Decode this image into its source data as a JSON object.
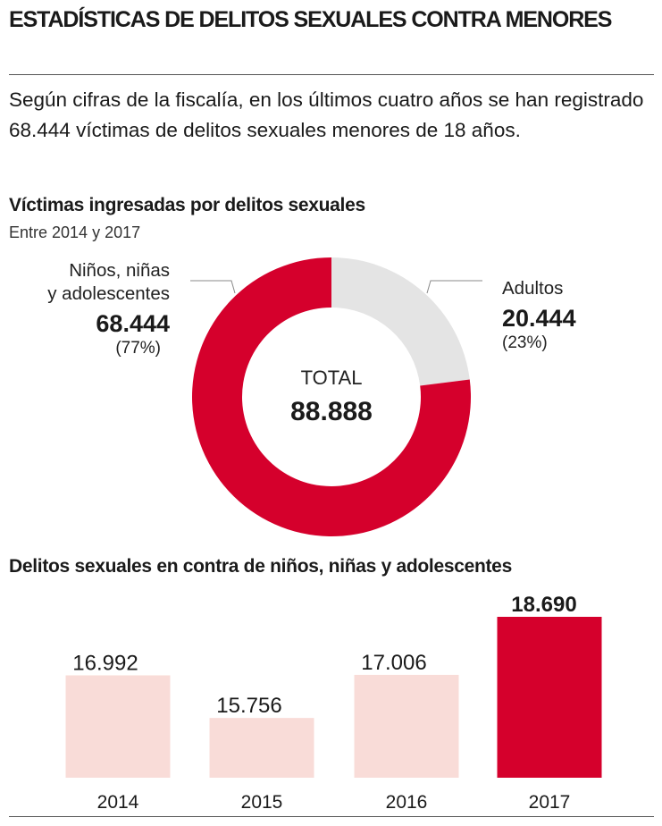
{
  "title": "ESTADÍSTICAS DE DELITOS SEXUALES CONTRA MENORES",
  "intro": "Según cifras de la fiscalía, en los últimos cuatro años se han registrado 68.444 víctimas de delitos sexuales menores de 18 años.",
  "colors": {
    "accent": "#d5002c",
    "light_gray": "#e4e4e4",
    "light_pink": "#f9dcd8"
  },
  "chart_data": [
    {
      "type": "pie",
      "title": "Víctimas ingresadas por delitos sexuales",
      "subtitle": "Entre 2014 y 2017",
      "center_label": "TOTAL",
      "center_value": "88.888",
      "slices": [
        {
          "label_line1": "Adultos",
          "label_line2": "",
          "value": 20444,
          "value_label": "20.444",
          "percent_label": "(23%)",
          "color": "#e4e4e4"
        },
        {
          "label_line1": "Niños, niñas",
          "label_line2": "y adolescentes",
          "value": 68444,
          "value_label": "68.444",
          "percent_label": "(77%)",
          "color": "#d5002c"
        }
      ]
    },
    {
      "type": "bar",
      "title": "Delitos sexuales en contra de niños, niñas y adolescentes",
      "categories": [
        "2014",
        "2015",
        "2016",
        "2017"
      ],
      "values": [
        16992,
        15756,
        17006,
        18690
      ],
      "value_labels": [
        "16.992",
        "15.756",
        "17.006",
        "18.690"
      ],
      "colors": [
        "#f9dcd8",
        "#f9dcd8",
        "#f9dcd8",
        "#d5002c"
      ],
      "highlight_index": 3
    }
  ]
}
